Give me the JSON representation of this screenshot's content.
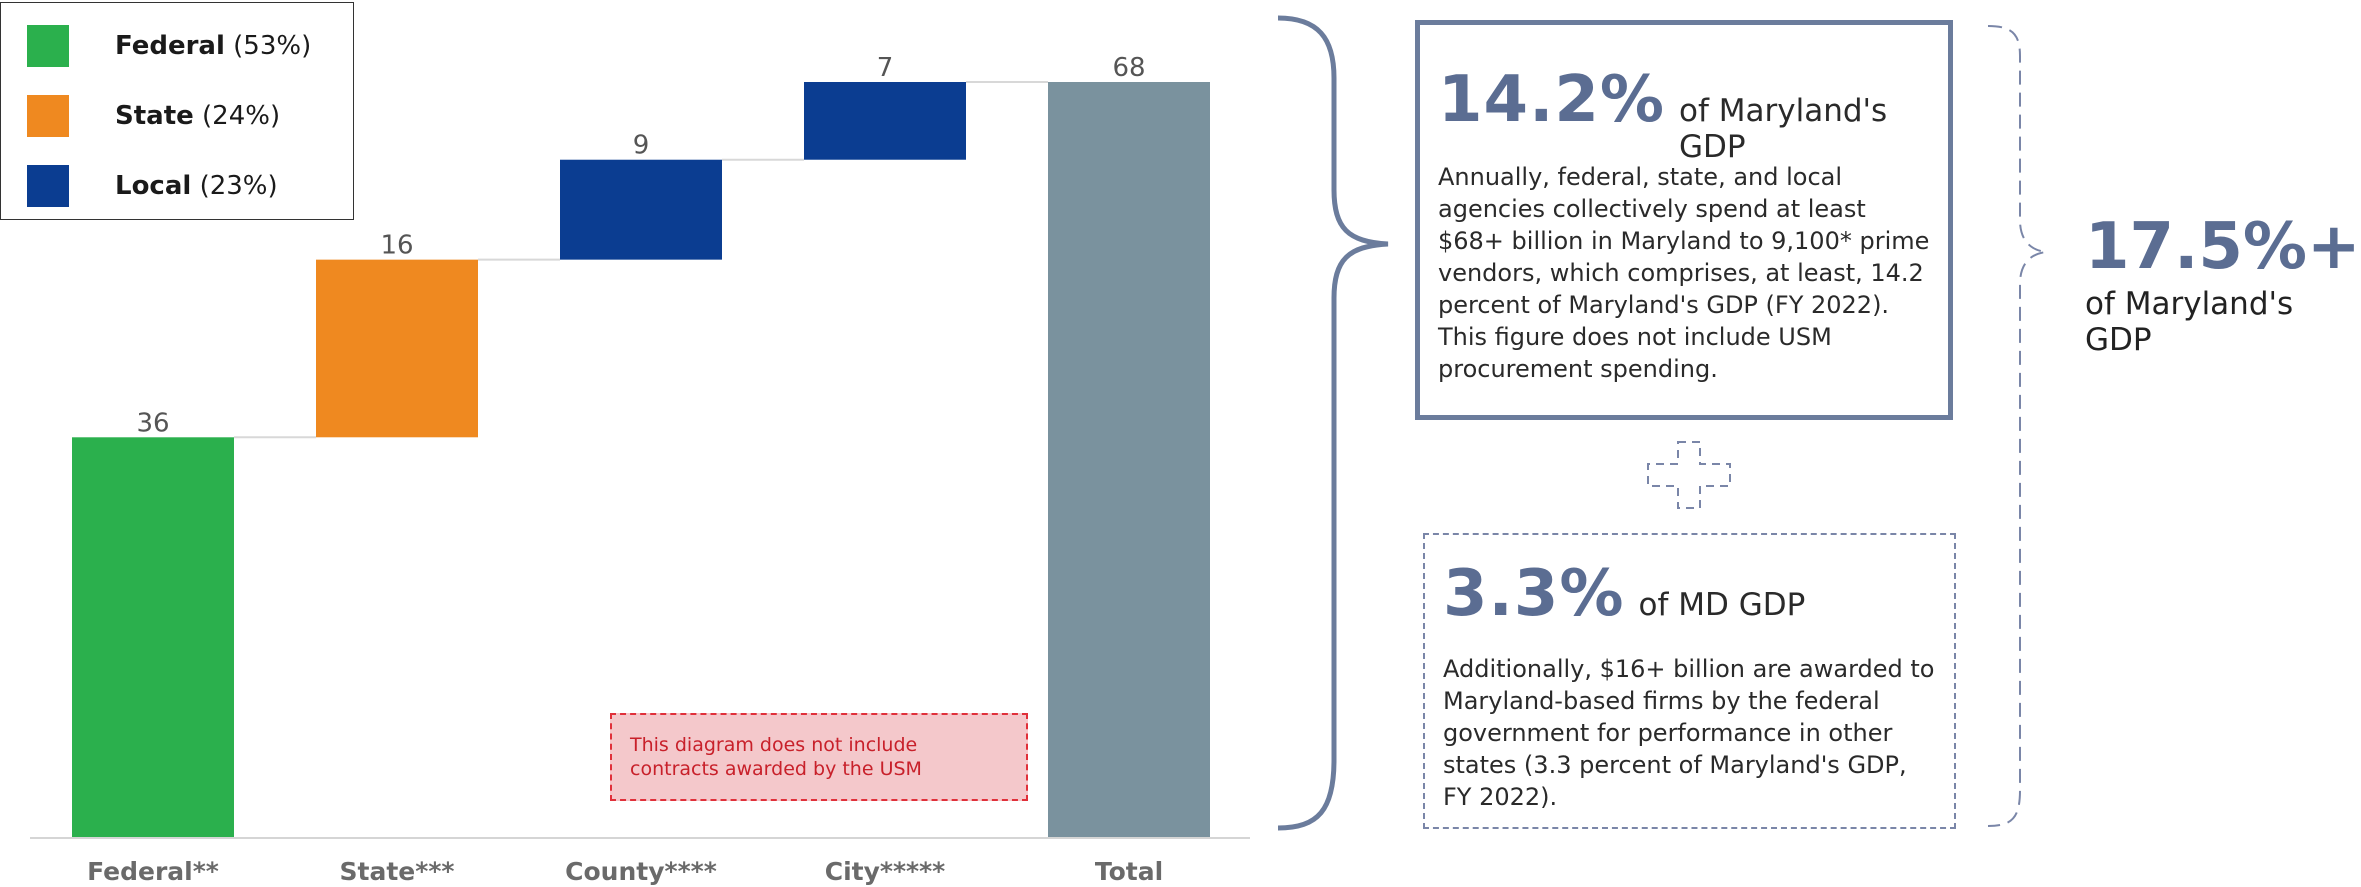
{
  "chart_data": {
    "type": "waterfall",
    "categories": [
      "Federal**",
      "State***",
      "County****",
      "City*****",
      "Total"
    ],
    "values": [
      36,
      16,
      9,
      7,
      68
    ],
    "value_labels": [
      "36",
      "16",
      "9",
      "7",
      "68"
    ],
    "series_kind": [
      "increase",
      "increase",
      "increase",
      "increase",
      "total"
    ],
    "colors": [
      "#2bb04d",
      "#ef8920",
      "#0b3d91",
      "#0b3d91",
      "#7a929e"
    ],
    "ylim": [
      0,
      68
    ],
    "grid": false,
    "legend": {
      "placement": "top-left",
      "entries": [
        {
          "name": "Federal",
          "pct": "(53%)",
          "color": "#2bb04d"
        },
        {
          "name": "State",
          "pct": "(24%)",
          "color": "#ef8920"
        },
        {
          "name": "Local",
          "pct": "(23%)",
          "color": "#0b3d91"
        }
      ]
    },
    "annotation": "This diagram does not include contracts awarded by the USM"
  },
  "panel1": {
    "pct": "14.2%",
    "label": "of Maryland's GDP",
    "body": "Annually, federal, state, and local agencies collectively spend at least $68+ billion in Maryland to 9,100* prime vendors, which comprises, at least, 14.2 percent of Maryland's GDP (FY 2022). This figure does not include USM procurement spending."
  },
  "panel2": {
    "pct": "3.3%",
    "label": "of MD GDP",
    "body": "Additionally, $16+ billion are awarded to Maryland-based firms by the federal government for performance in other states (3.3 percent of Maryland's GDP, FY 2022)."
  },
  "total": {
    "pct": "17.5%+",
    "label": "of Maryland's GDP"
  },
  "colors": {
    "accent": "#5b6d92",
    "box_border": "#6b7c9c",
    "note_border": "#e0303a",
    "note_fill": "#f4c8cb"
  },
  "icons": {
    "plus": "dashed-plus-icon",
    "brace": "curly-brace-icon",
    "bracket": "dashed-bracket-icon"
  }
}
